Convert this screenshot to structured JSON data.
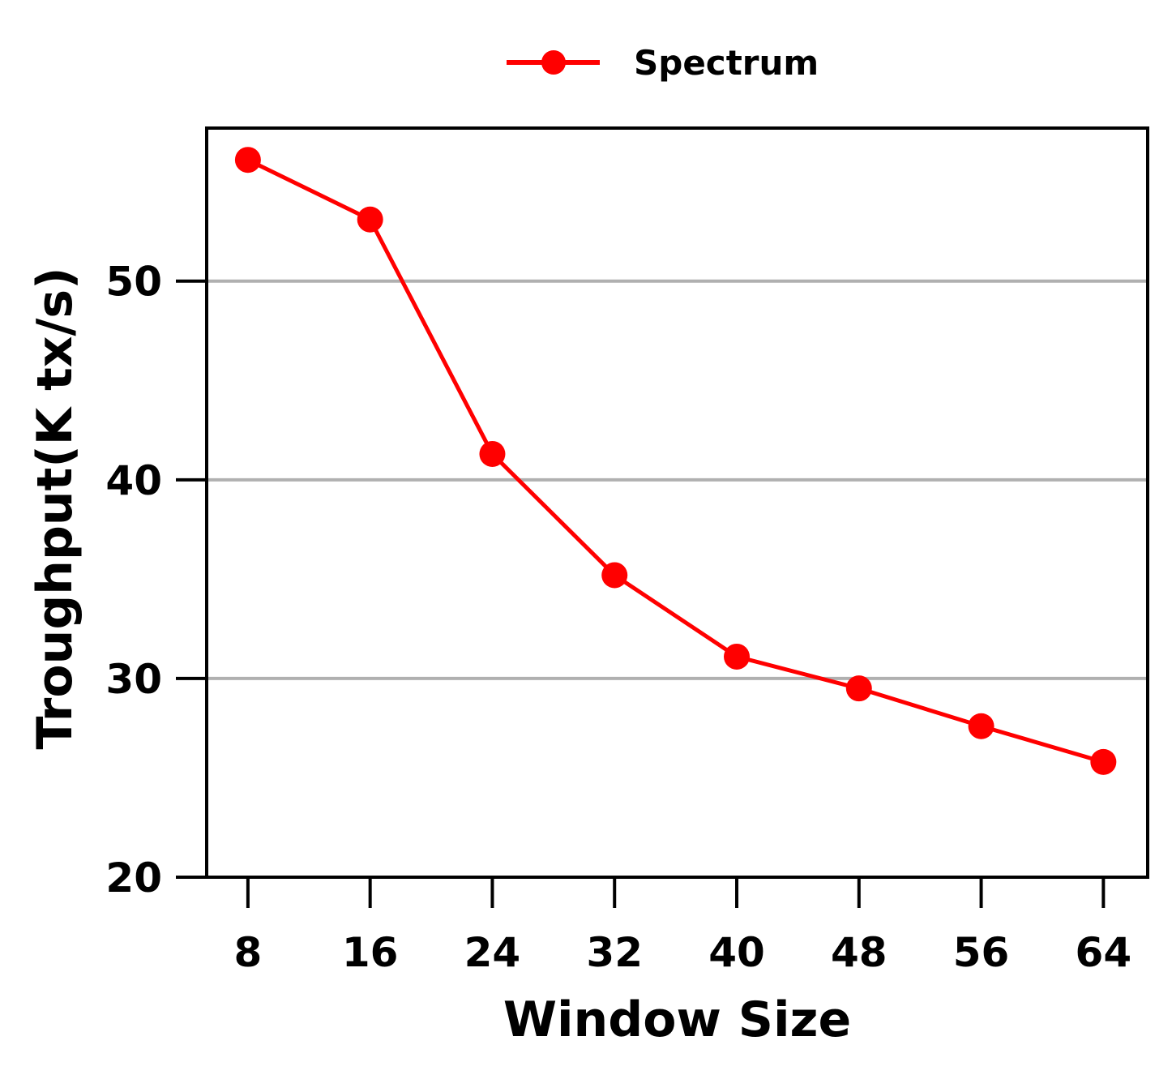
{
  "chart_data": {
    "type": "line",
    "xlabel": "Window Size",
    "ylabel": "Troughput(K tx/s)",
    "x": [
      8,
      16,
      24,
      32,
      40,
      48,
      56,
      64
    ],
    "x_ticks": [
      "8",
      "16",
      "24",
      "32",
      "40",
      "48",
      "56",
      "64"
    ],
    "y_ticks": [
      "20",
      "30",
      "40",
      "50"
    ],
    "ylim": [
      20,
      57.7
    ],
    "xlim": [
      5.3,
      66.9
    ],
    "grid": "horizontal",
    "legend_position": "top-center",
    "series": [
      {
        "name": "Spectrum",
        "color": "#ff0000",
        "marker": "circle",
        "values": [
          56.1,
          53.1,
          41.3,
          35.2,
          31.1,
          29.5,
          27.6,
          25.8
        ]
      }
    ]
  }
}
